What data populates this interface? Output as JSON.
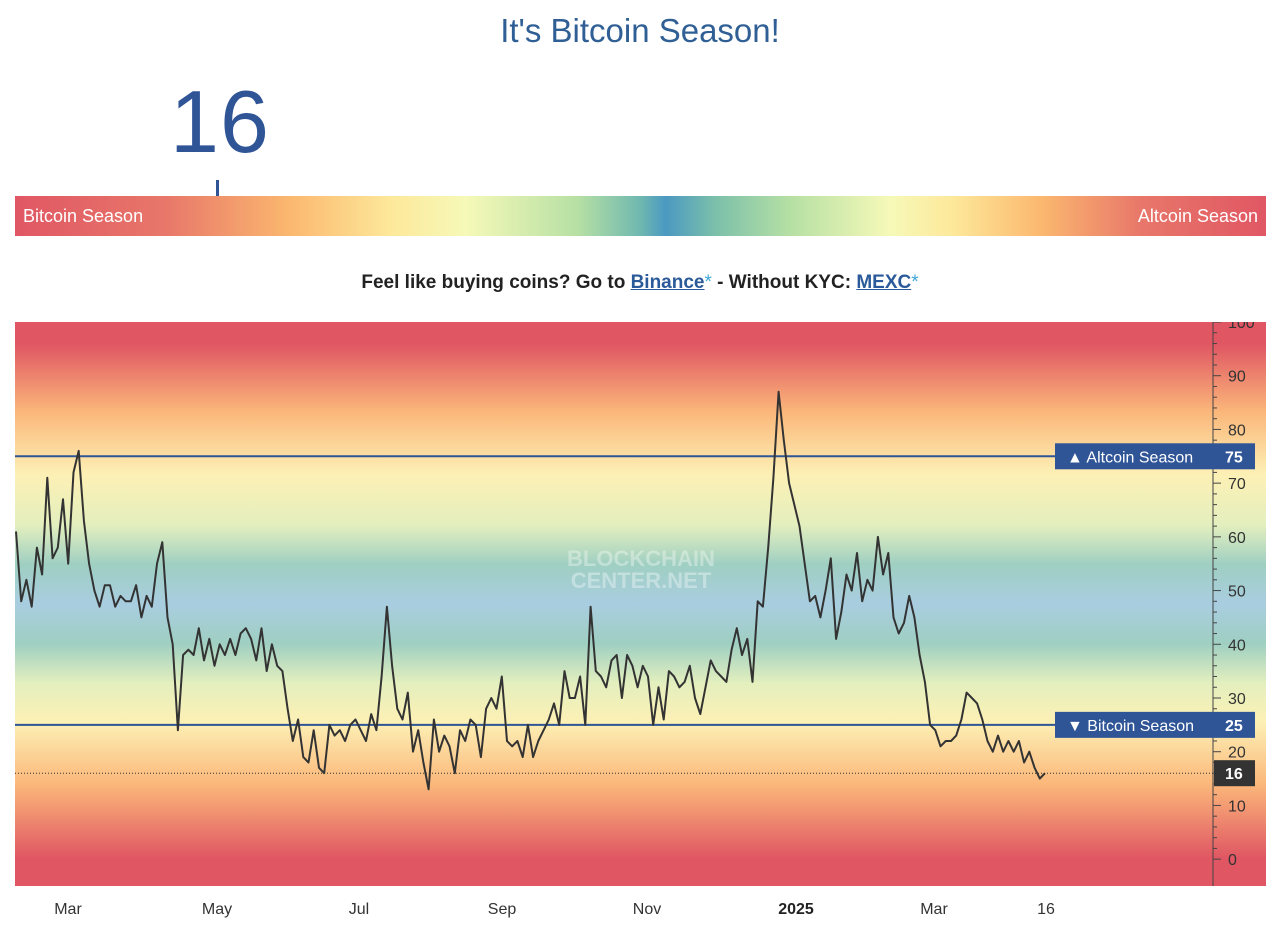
{
  "header": {
    "title": "It's Bitcoin Season!"
  },
  "index": {
    "value": "16",
    "level": 16
  },
  "gauge": {
    "left_label": "Bitcoin Season",
    "right_label": "Altcoin Season",
    "marker_value": 16
  },
  "promo": {
    "prefix": "Feel like buying coins? Go to ",
    "link1": "Binance",
    "star1": "*",
    "middle": " - Without KYC: ",
    "link2": "MEXC",
    "star2": "*"
  },
  "colors": {
    "line": "#333333",
    "threshold": "#2f5597",
    "badge": "#2f5597",
    "current_badge": "#333333"
  },
  "chart_data": {
    "type": "line",
    "ylim": [
      -5,
      100
    ],
    "yticks": [
      0,
      10,
      20,
      30,
      40,
      50,
      60,
      70,
      80,
      90,
      100
    ],
    "x_labels": [
      "Mar",
      "May",
      "Jul",
      "Sep",
      "Nov",
      "2025",
      "Mar",
      "16"
    ],
    "watermark": [
      "BLOCKCHAIN",
      "CENTER.NET"
    ],
    "thresholds": [
      {
        "label": "▲ Altcoin Season",
        "value": 75
      },
      {
        "label": "▼ Bitcoin Season",
        "value": 25
      }
    ],
    "current": {
      "label": "16",
      "value": 16
    },
    "series": [
      {
        "values": [
          61,
          48,
          52,
          47,
          58,
          53,
          71,
          56,
          58,
          67,
          55,
          72,
          76,
          63,
          55,
          50,
          47,
          51,
          51,
          47,
          49,
          48,
          48,
          51,
          45,
          49,
          47,
          55,
          59,
          45,
          40,
          24,
          38,
          39,
          38,
          43,
          37,
          41,
          36,
          40,
          38,
          41,
          38,
          42,
          43,
          41,
          37,
          43,
          35,
          40,
          36,
          35,
          28,
          22,
          26,
          19,
          18,
          24,
          17,
          16,
          25,
          23,
          24,
          22,
          25,
          26,
          24,
          22,
          27,
          24,
          34,
          47,
          36,
          28,
          26,
          31,
          20,
          24,
          18,
          13,
          26,
          20,
          23,
          21,
          16,
          24,
          22,
          26,
          25,
          19,
          28,
          30,
          28,
          34,
          22,
          21,
          22,
          19,
          25,
          19,
          22,
          24,
          26,
          29,
          25,
          35,
          30,
          30,
          34,
          25,
          47,
          35,
          34,
          32,
          37,
          38,
          30,
          38,
          36,
          32,
          36,
          34,
          25,
          32,
          26,
          35,
          34,
          32,
          33,
          36,
          30,
          27,
          32,
          37,
          35,
          34,
          33,
          39,
          43,
          38,
          41,
          33,
          48,
          47,
          58,
          71,
          87,
          78,
          70,
          66,
          62,
          55,
          48,
          49,
          45,
          50,
          56,
          41,
          46,
          53,
          50,
          57,
          48,
          52,
          50,
          60,
          53,
          57,
          45,
          42,
          44,
          49,
          45,
          38,
          33,
          25,
          24,
          21,
          22,
          22,
          23,
          26,
          31,
          30,
          29,
          26,
          22,
          20,
          23,
          20,
          22,
          20,
          22,
          18,
          20,
          17,
          15,
          16
        ]
      }
    ]
  }
}
